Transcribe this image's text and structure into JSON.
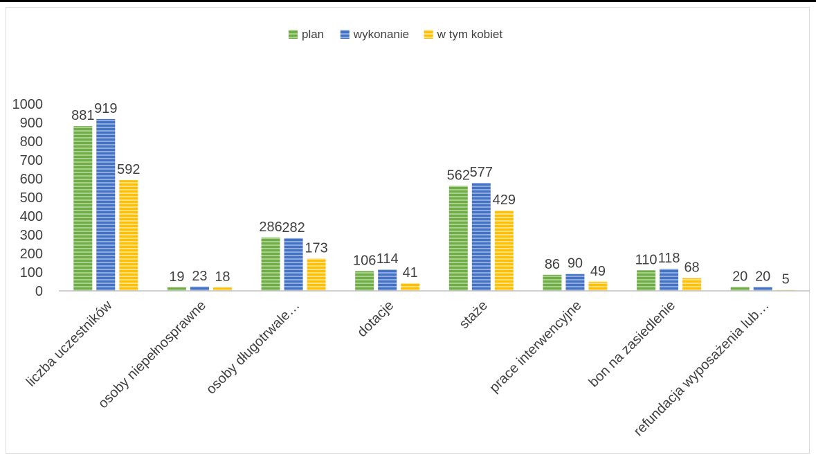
{
  "chart_data": {
    "type": "bar",
    "categories": [
      "liczba uczestników",
      "osoby niepełnosprawne",
      "osoby długotrwale…",
      "dotacje",
      "staże",
      "prace interwencyjne",
      "bon na zasiedlenie",
      "refundacja wyposażenia lub…"
    ],
    "series": [
      {
        "name": "plan",
        "values": [
          881,
          19,
          286,
          106,
          562,
          86,
          110,
          20
        ],
        "color": "#70ad47",
        "stripe": "#a9d18e"
      },
      {
        "name": "wykonanie",
        "values": [
          919,
          23,
          282,
          114,
          577,
          90,
          118,
          20
        ],
        "color": "#4472c4",
        "stripe": "#8faadc"
      },
      {
        "name": "w tym kobiet",
        "values": [
          592,
          18,
          173,
          41,
          429,
          49,
          68,
          5
        ],
        "color": "#ffc000",
        "stripe": "#ffe08a"
      }
    ],
    "ylim": [
      0,
      1000
    ],
    "yticks": [
      0,
      100,
      200,
      300,
      400,
      500,
      600,
      700,
      800,
      900,
      1000
    ],
    "legend_position": "top",
    "grid": false,
    "data_labels": true,
    "title": "",
    "xlabel": "",
    "ylabel": ""
  }
}
